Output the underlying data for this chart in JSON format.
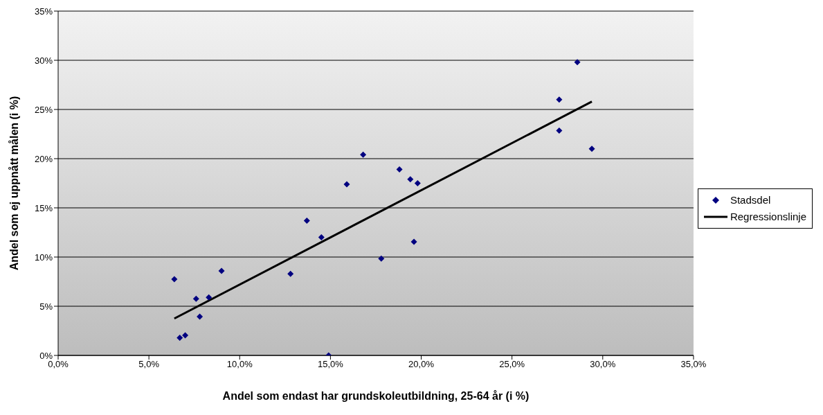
{
  "chart_data": {
    "type": "scatter",
    "xlabel": "Andel som endast har grundskoleutbildning, 25-64 år (i %)",
    "ylabel": "Andel som ej uppnått målen (i %)",
    "xlim": [
      0,
      35
    ],
    "ylim": [
      0,
      35
    ],
    "xticks": [
      {
        "value": 0,
        "label": "0,0%"
      },
      {
        "value": 5,
        "label": "5,0%"
      },
      {
        "value": 10,
        "label": "10,0%"
      },
      {
        "value": 15,
        "label": "15,0%"
      },
      {
        "value": 20,
        "label": "20,0%"
      },
      {
        "value": 25,
        "label": "25,0%"
      },
      {
        "value": 30,
        "label": "30,0%"
      },
      {
        "value": 35,
        "label": "35,0%"
      }
    ],
    "yticks": [
      {
        "value": 0,
        "label": "0%"
      },
      {
        "value": 5,
        "label": "5%"
      },
      {
        "value": 10,
        "label": "10%"
      },
      {
        "value": 15,
        "label": "15%"
      },
      {
        "value": 20,
        "label": "20%"
      },
      {
        "value": 25,
        "label": "25%"
      },
      {
        "value": 30,
        "label": "30%"
      },
      {
        "value": 35,
        "label": "35%"
      }
    ],
    "grid": "y",
    "legend": "right",
    "series": [
      {
        "name": "Stadsdel",
        "marker": "diamond",
        "color": "#000080",
        "x": [
          6.4,
          6.7,
          7.0,
          7.6,
          7.8,
          8.3,
          9.0,
          12.8,
          13.7,
          14.5,
          14.9,
          15.9,
          16.8,
          17.8,
          18.8,
          19.4,
          19.6,
          19.8,
          27.6,
          27.6,
          28.6,
          29.4
        ],
        "values": [
          7.75,
          1.8,
          2.05,
          5.75,
          3.95,
          5.9,
          8.6,
          8.3,
          13.7,
          12.0,
          0,
          17.4,
          20.4,
          9.85,
          18.9,
          17.9,
          11.55,
          17.5,
          26.0,
          22.85,
          29.8,
          21.0
        ]
      },
      {
        "name": "Regressionslinje",
        "type": "line",
        "marker": "none",
        "color": "#000000",
        "line_style": "solid",
        "x": [
          6.4,
          29.4
        ],
        "values": [
          3.75,
          25.8
        ]
      }
    ]
  }
}
